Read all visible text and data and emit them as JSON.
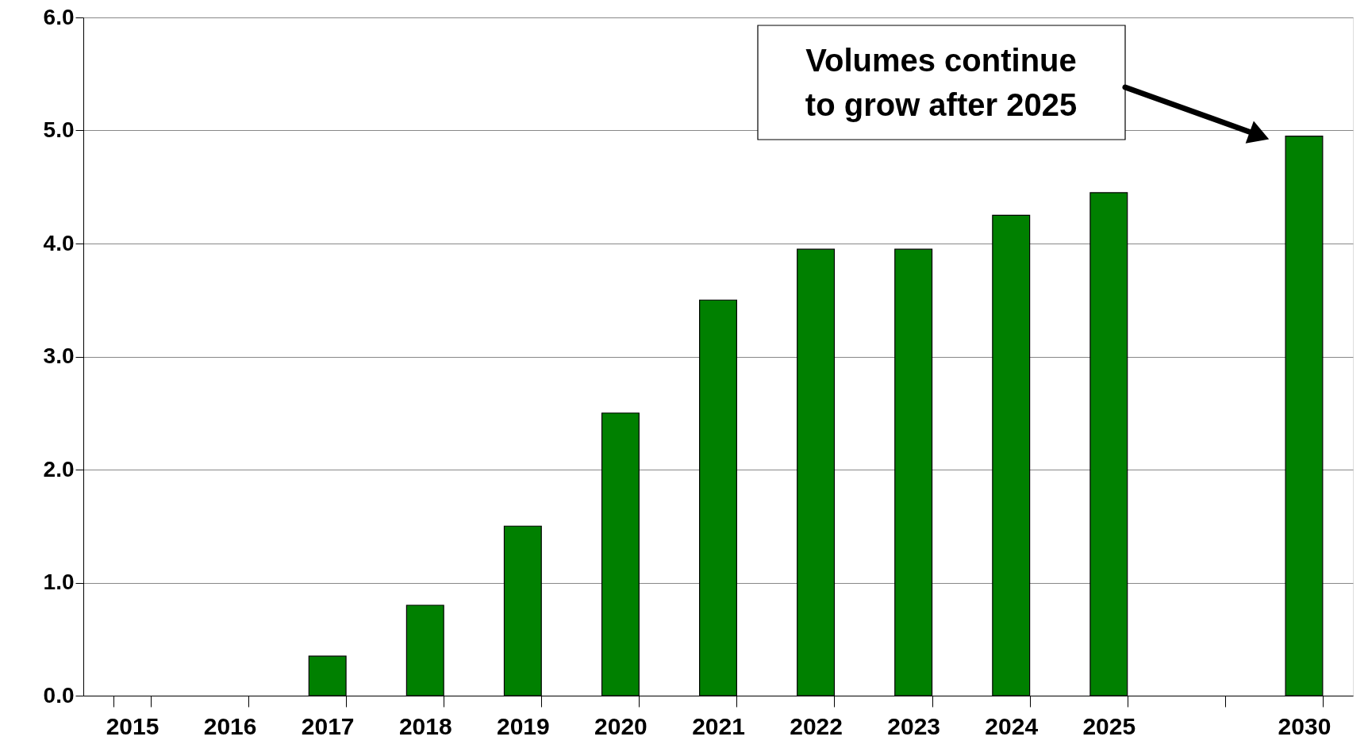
{
  "chart_data": {
    "type": "bar",
    "categories": [
      "2015",
      "2016",
      "2017",
      "2018",
      "2019",
      "2020",
      "2021",
      "2022",
      "2023",
      "2024",
      "2025",
      null,
      "2030"
    ],
    "values": [
      null,
      null,
      0.35,
      0.8,
      1.5,
      2.5,
      3.5,
      3.95,
      3.95,
      4.25,
      4.45,
      null,
      4.95
    ],
    "color": "#008000",
    "ylim": [
      0,
      6
    ],
    "yticks": [
      {
        "value": 0,
        "label": "0.0"
      },
      {
        "value": 1,
        "label": "1.0"
      },
      {
        "value": 2,
        "label": "2.0"
      },
      {
        "value": 3,
        "label": "3.0"
      },
      {
        "value": 4,
        "label": "4.0"
      },
      {
        "value": 5,
        "label": "5.0"
      },
      {
        "value": 6,
        "label": "6.0"
      }
    ],
    "grid": "y",
    "annotations": [
      "Volumes continue to grow after 2025"
    ]
  }
}
